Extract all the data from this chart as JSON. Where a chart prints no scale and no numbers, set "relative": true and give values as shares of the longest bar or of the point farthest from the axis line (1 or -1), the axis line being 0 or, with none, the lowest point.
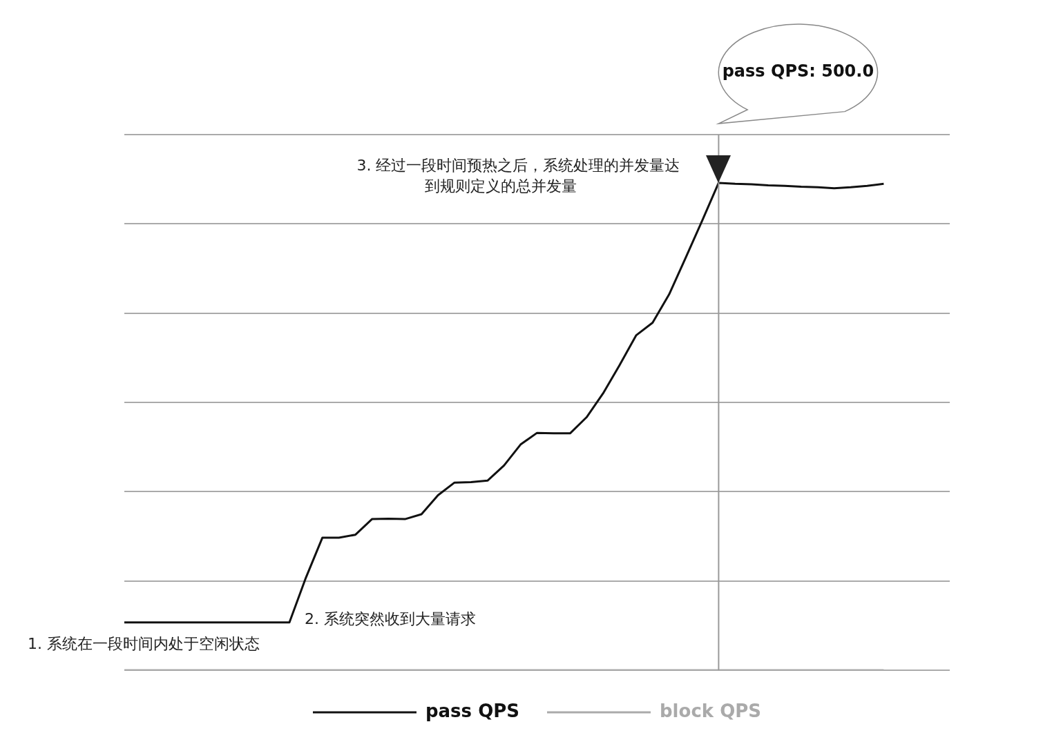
{
  "chart_data": {
    "type": "line",
    "relative": true,
    "grid": "y",
    "legend": "bottom",
    "categories": [
      null,
      null,
      null,
      null,
      null,
      null,
      null,
      null,
      null,
      null,
      null,
      null,
      null,
      null,
      null,
      null,
      null,
      null,
      null,
      null,
      null,
      null,
      null,
      null,
      null,
      null,
      null,
      null,
      null,
      null,
      null,
      null,
      null,
      null,
      null,
      null,
      null,
      null,
      null,
      null,
      null,
      null,
      null,
      null,
      null,
      null,
      null,
      null,
      null,
      null,
      null
    ],
    "series": [
      {
        "name": "pass QPS",
        "color": "#111111",
        "values": [
          0.098,
          0.098,
          0.098,
          0.098,
          0.098,
          0.098,
          0.098,
          0.098,
          0.098,
          0.098,
          0.098,
          0.19,
          0.272,
          0.272,
          0.278,
          0.31,
          0.311,
          0.31,
          0.32,
          0.359,
          0.385,
          0.386,
          0.389,
          0.42,
          0.463,
          0.487,
          0.486,
          0.486,
          0.519,
          0.568,
          0.626,
          0.687,
          0.713,
          0.771,
          0.846,
          0.922,
          1,
          0.998,
          0.997,
          0.995,
          0.994,
          0.992,
          0.991,
          0.989,
          0.991,
          0.994,
          0.998,
          null,
          null,
          null,
          null
        ]
      },
      {
        "name": "block QPS",
        "color": "#aaaaaa",
        "values": [
          0,
          0,
          0,
          0,
          0,
          0,
          0,
          0,
          0,
          0,
          0,
          0,
          0,
          0,
          0,
          0,
          0,
          0,
          0,
          0,
          0,
          0,
          0,
          0,
          0,
          0,
          0,
          0,
          0,
          0,
          0,
          0,
          0,
          0,
          0,
          0,
          0,
          0,
          0,
          0,
          0,
          0,
          0,
          0,
          0,
          0,
          0,
          null,
          null,
          null,
          null
        ]
      }
    ],
    "annotations": [
      "1. 系统在一段时间内处于空闲状态",
      "2. 系统突然收到大量请求",
      "3. 经过一段时间预热之后，系统处理的并发量达到规则定义的总并发量",
      "pass QPS: 500.0"
    ]
  }
}
